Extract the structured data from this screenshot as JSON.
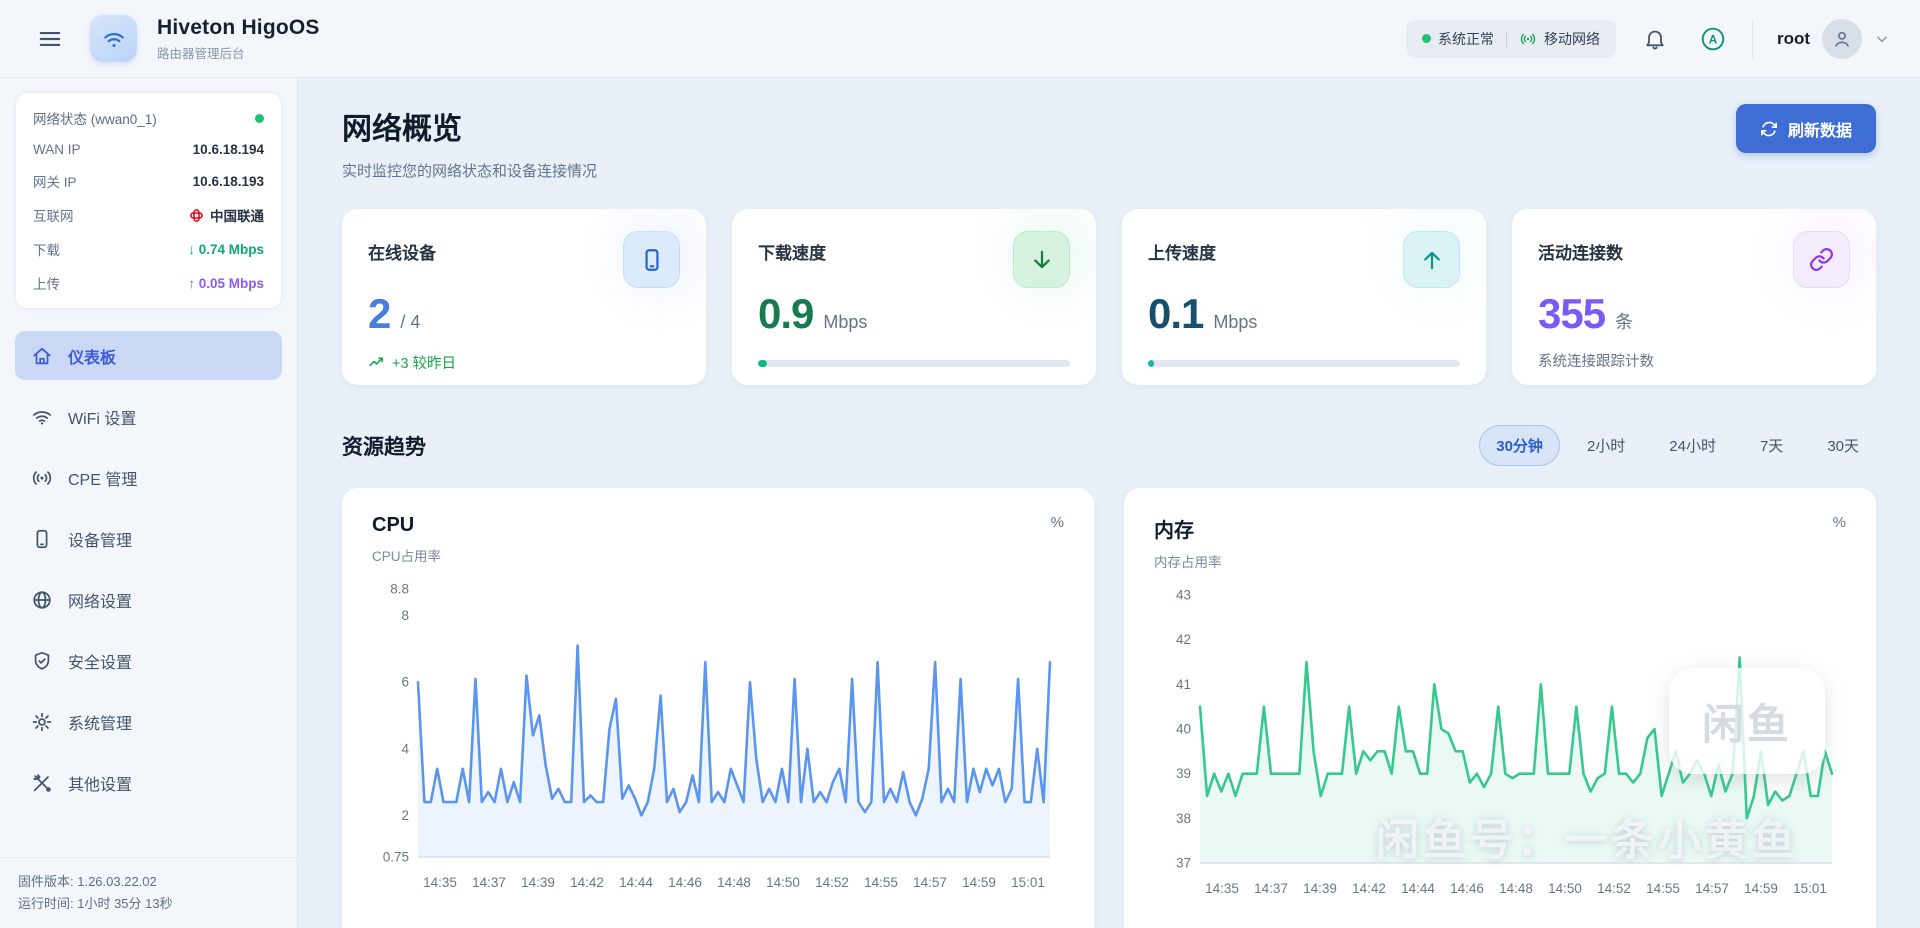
{
  "header": {
    "title": "Hiveton HigoOS",
    "subtitle": "路由器管理后台",
    "status": {
      "system": "系统正常",
      "network": "移动网络"
    },
    "user": {
      "name": "root"
    }
  },
  "sidebar": {
    "status_card": {
      "title": "网络状态 (wwan0_1)",
      "rows": [
        {
          "label": "WAN IP",
          "value": "10.6.18.194"
        },
        {
          "label": "网关 IP",
          "value": "10.6.18.193"
        },
        {
          "label": "互联网",
          "value": "中国联通",
          "icon": "china-unicom-logo"
        },
        {
          "label": "下载",
          "value": "0.74 Mbps",
          "arrow": "↓"
        },
        {
          "label": "上传",
          "value": "0.05 Mbps",
          "arrow": "↑"
        }
      ]
    },
    "menu": [
      {
        "label": "仪表板",
        "icon": "home-icon",
        "active": true
      },
      {
        "label": "WiFi 设置",
        "icon": "wifi-icon"
      },
      {
        "label": "CPE 管理",
        "icon": "broadcast-icon"
      },
      {
        "label": "设备管理",
        "icon": "phone-icon"
      },
      {
        "label": "网络设置",
        "icon": "globe-icon"
      },
      {
        "label": "安全设置",
        "icon": "shield-icon"
      },
      {
        "label": "系统管理",
        "icon": "gear-icon"
      },
      {
        "label": "其他设置",
        "icon": "tools-icon"
      }
    ],
    "footer": {
      "firmware": "固件版本: 1.26.03.22.02",
      "uptime": "运行时间: 1小时 35分 13秒"
    }
  },
  "main": {
    "title": "网络概览",
    "subtitle": "实时监控您的网络状态和设备连接情况",
    "refresh_label": "刷新数据",
    "stats": [
      {
        "label": "在线设备",
        "value": "2",
        "suffix": "/ 4",
        "trend": "+3 较昨日",
        "icon": "phone-icon",
        "accent": "#4a7ddd"
      },
      {
        "label": "下载速度",
        "value": "0.9",
        "suffix": "Mbps",
        "icon": "arrow-down-icon",
        "accent": "#177c4d",
        "progress_percent": 3
      },
      {
        "label": "上传速度",
        "value": "0.1",
        "suffix": "Mbps",
        "icon": "arrow-up-icon",
        "accent": "#15506e",
        "progress_percent": 2
      },
      {
        "label": "活动连接数",
        "value": "355",
        "suffix": "条",
        "note": "系统连接跟踪计数",
        "icon": "link-icon",
        "accent": "#7a5af5"
      }
    ],
    "trends": {
      "title": "资源趋势",
      "ranges": [
        "30分钟",
        "2小时",
        "24小时",
        "7天",
        "30天"
      ],
      "active_index": 0
    }
  },
  "watermark": {
    "badge": "闲鱼",
    "text": "闲鱼号：一条小黄鱼"
  },
  "chart_data": [
    {
      "type": "line",
      "title": "CPU",
      "subtitle": "CPU占用率",
      "unit": "%",
      "color": "#5b96ee",
      "ylim": [
        0.75,
        8.8
      ],
      "yticks": [
        8.8,
        8,
        6,
        4,
        2,
        0.75
      ],
      "x_labels": [
        "14:35",
        "14:37",
        "14:39",
        "14:42",
        "14:44",
        "14:46",
        "14:48",
        "14:50",
        "14:52",
        "14:55",
        "14:57",
        "14:59",
        "15:01"
      ],
      "legend": "off",
      "grid": "off",
      "values": [
        6.0,
        2.4,
        2.4,
        3.4,
        2.4,
        2.4,
        2.4,
        3.4,
        2.4,
        6.1,
        2.4,
        2.7,
        2.4,
        3.4,
        2.4,
        3.0,
        2.4,
        6.2,
        4.4,
        5.0,
        3.5,
        2.5,
        2.8,
        2.4,
        2.4,
        7.1,
        2.4,
        2.6,
        2.4,
        2.4,
        4.6,
        5.5,
        2.5,
        2.9,
        2.5,
        2.0,
        2.4,
        3.4,
        5.6,
        2.4,
        2.8,
        2.1,
        2.4,
        3.2,
        2.4,
        6.6,
        2.4,
        2.7,
        2.4,
        3.4,
        2.9,
        2.4,
        6.0,
        3.7,
        2.4,
        2.8,
        2.4,
        3.4,
        2.4,
        6.1,
        2.4,
        4.0,
        2.4,
        2.7,
        2.4,
        3.0,
        3.4,
        2.4,
        6.1,
        2.4,
        2.1,
        2.4,
        6.6,
        2.4,
        2.8,
        2.4,
        3.3,
        2.4,
        2.0,
        2.5,
        3.4,
        6.6,
        2.4,
        2.8,
        2.4,
        6.1,
        2.4,
        3.4,
        2.7,
        3.4,
        2.9,
        3.4,
        2.4,
        2.8,
        6.1,
        2.4,
        2.4,
        4.0,
        2.4,
        6.6
      ]
    },
    {
      "type": "line",
      "title": "内存",
      "subtitle": "内存占用率",
      "unit": "%",
      "color": "#35c98e",
      "ylim": [
        37,
        43
      ],
      "yticks": [
        43,
        42,
        41,
        40,
        39,
        38,
        37
      ],
      "x_labels": [
        "14:35",
        "14:37",
        "14:39",
        "14:42",
        "14:44",
        "14:46",
        "14:48",
        "14:50",
        "14:52",
        "14:55",
        "14:57",
        "14:59",
        "15:01"
      ],
      "legend": "off",
      "grid": "off",
      "values": [
        40.5,
        38.5,
        39.0,
        38.6,
        39.0,
        38.5,
        39.0,
        39.0,
        39.0,
        40.5,
        39.0,
        39.0,
        39.0,
        39.0,
        39.0,
        41.5,
        39.5,
        38.5,
        39.0,
        39.0,
        39.0,
        40.5,
        39.0,
        39.5,
        39.3,
        39.5,
        39.5,
        39.0,
        40.5,
        39.5,
        39.5,
        39.0,
        39.0,
        41.0,
        40.0,
        39.9,
        39.5,
        39.5,
        38.8,
        39.0,
        38.7,
        39.0,
        40.5,
        39.0,
        38.9,
        39.0,
        39.0,
        39.0,
        41.0,
        39.0,
        39.0,
        39.0,
        39.0,
        40.5,
        39.0,
        38.6,
        38.9,
        39.0,
        40.5,
        39.0,
        39.0,
        38.8,
        39.0,
        39.8,
        40.0,
        38.5,
        39.0,
        39.5,
        38.8,
        39.0,
        39.3,
        39.0,
        38.5,
        39.2,
        38.6,
        39.0,
        41.6,
        38.0,
        38.5,
        39.5,
        38.3,
        38.6,
        38.4,
        38.5,
        39.0,
        39.5,
        38.5,
        38.5,
        39.5,
        39.0
      ]
    }
  ]
}
